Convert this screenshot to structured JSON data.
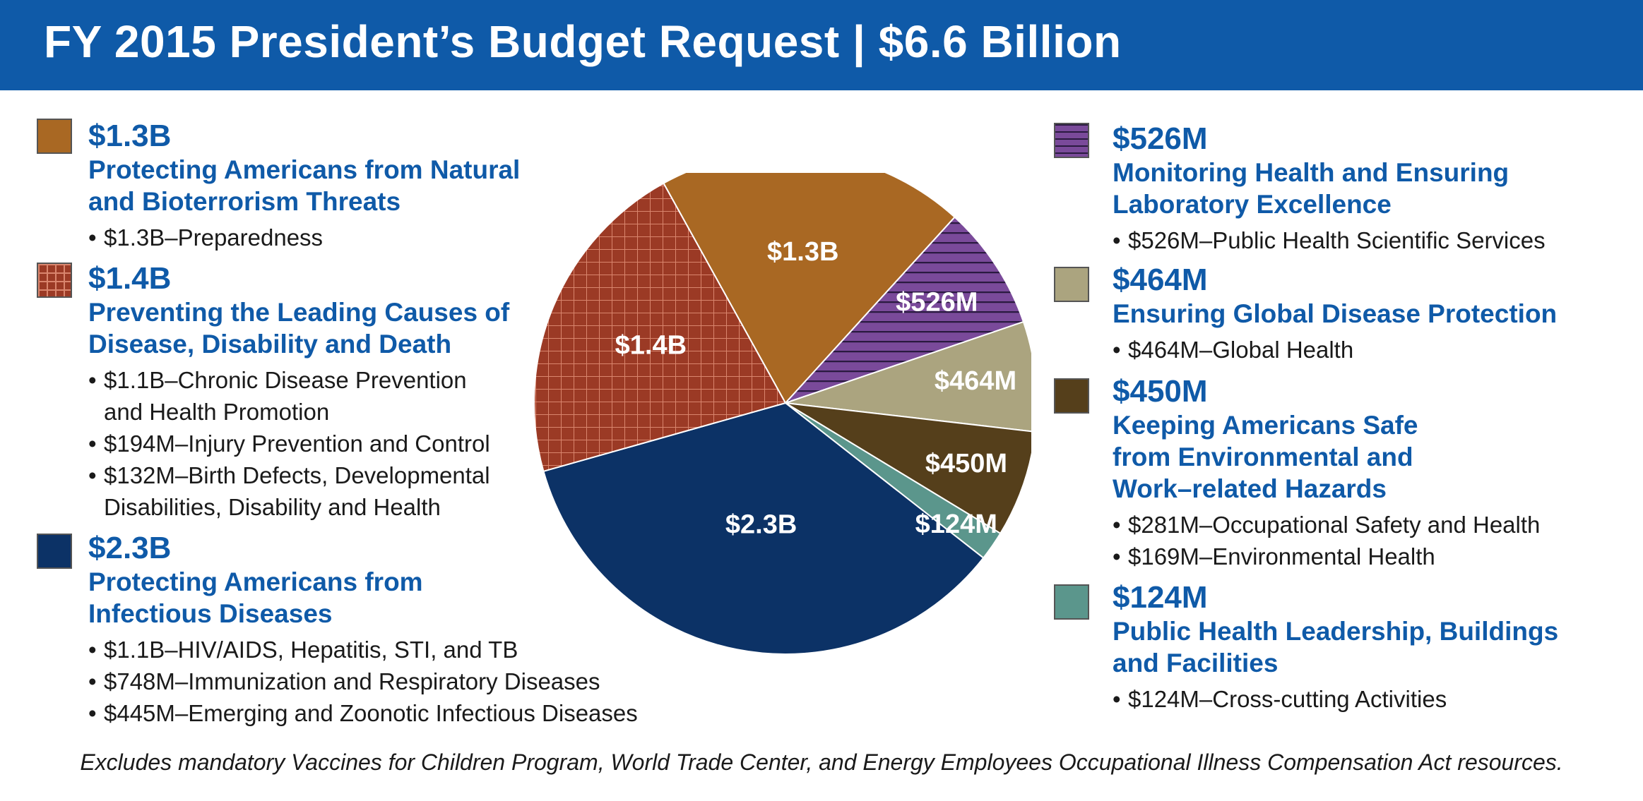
{
  "title": "FY 2015 President’s Budget Request | $6.6 Billion",
  "footnote": "Excludes mandatory Vaccines for Children Program, World Trade Center, and Energy Employees Occupational Illness Compensation Act resources.",
  "legend": [
    {
      "amount": "$1.3B",
      "heading": "Protecting Americans from Natural and Bioterrorism Threats",
      "items": [
        "$1.3B–Preparedness"
      ],
      "color": "#a96823",
      "pattern": "solid"
    },
    {
      "amount": "$1.4B",
      "heading": "Preventing the Leading Causes of Disease, Disability and Death",
      "items": [
        "$1.1B–Chronic Disease Prevention and Health Promotion",
        "$194M–Injury Prevention and Control",
        "$132M–Birth Defects, Developmental Disabilities, Disability and Health"
      ],
      "color": "#9b3a25",
      "pattern": "grid"
    },
    {
      "amount": "$2.3B",
      "heading": "Protecting Americans from Infectious Diseases",
      "items": [
        "$1.1B–HIV/AIDS, Hepatitis, STI, and TB",
        "$748M–Immunization and Respiratory Diseases",
        "$445M–Emerging and Zoonotic Infectious Diseases"
      ],
      "color": "#0c3266",
      "pattern": "solid"
    },
    {
      "amount": "$526M",
      "heading": "Monitoring Health and Ensuring Laboratory Excellence",
      "items": [
        "$526M–Public Health Scientific Services"
      ],
      "color": "#7a4a9a",
      "pattern": "lines"
    },
    {
      "amount": "$464M",
      "heading": "Ensuring Global Disease Protection",
      "items": [
        "$464M–Global Health"
      ],
      "color": "#aba47f",
      "pattern": "solid"
    },
    {
      "amount": "$450M",
      "heading": "Keeping Americans Safe from Environmental and Work–related Hazards",
      "items": [
        "$281M–Occupational Safety and Health",
        "$169M–Environmental Health"
      ],
      "color": "#553f1b",
      "pattern": "solid"
    },
    {
      "amount": "$124M",
      "heading": "Public Health Leadership, Buildings and Facilities",
      "items": [
        "$124M–Cross-cutting Activities"
      ],
      "color": "#5b968c",
      "pattern": "solid"
    }
  ],
  "chart_data": {
    "type": "pie",
    "title": "FY 2015 President’s Budget Request | $6.6 Billion",
    "slices": [
      {
        "label": "$1.3B",
        "value": 1300,
        "color": "#a96823",
        "pattern": "solid"
      },
      {
        "label": "$526M",
        "value": 526,
        "color": "#7a4a9a",
        "pattern": "lines"
      },
      {
        "label": "$464M",
        "value": 464,
        "color": "#aba47f",
        "pattern": "solid"
      },
      {
        "label": "$450M",
        "value": 450,
        "color": "#553f1b",
        "pattern": "solid"
      },
      {
        "label": "$124M",
        "value": 124,
        "color": "#5b968c",
        "pattern": "solid"
      },
      {
        "label": "$2.3B",
        "value": 2300,
        "color": "#0c3266",
        "pattern": "solid"
      },
      {
        "label": "$1.4B",
        "value": 1400,
        "color": "#9b3a25",
        "pattern": "grid"
      }
    ],
    "units": "USD millions",
    "start_angle_deg": 331,
    "direction": "clockwise"
  }
}
